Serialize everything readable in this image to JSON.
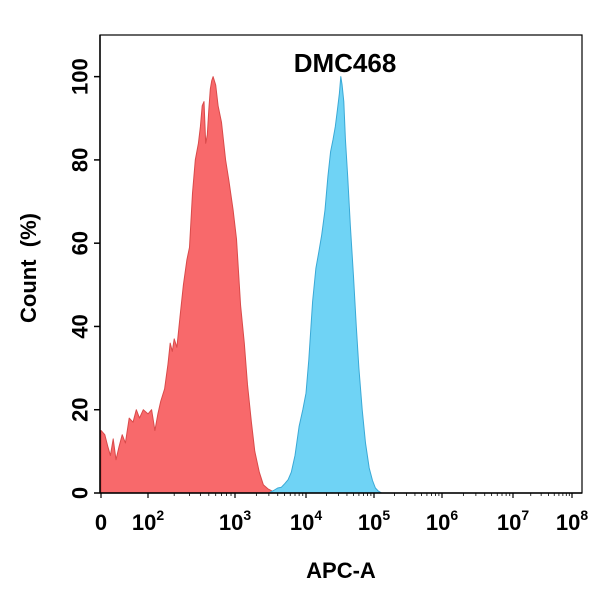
{
  "chart_data": {
    "type": "area",
    "title": "DMC468",
    "xlabel": "APC-A",
    "ylabel": "Count  (%)",
    "xscale": "biexponential",
    "ylim": [
      0,
      110
    ],
    "yticks": [
      0,
      20,
      40,
      60,
      80,
      100
    ],
    "xticks": [
      {
        "value": 0,
        "base": "0",
        "exp": ""
      },
      {
        "value": 100,
        "base": "10",
        "exp": "2"
      },
      {
        "value": 1000,
        "base": "10",
        "exp": "3"
      },
      {
        "value": 10000,
        "base": "10",
        "exp": "4"
      },
      {
        "value": 100000,
        "base": "10",
        "exp": "5"
      },
      {
        "value": 1000000,
        "base": "10",
        "exp": "6"
      },
      {
        "value": 10000000,
        "base": "10",
        "exp": "7"
      },
      {
        "value": 100000000,
        "base": "10",
        "exp": "8"
      }
    ],
    "grid": false,
    "series": [
      {
        "color": "#f8696b",
        "stroke": "#d94a4a",
        "points": [
          [
            0,
            15
          ],
          [
            8,
            14
          ],
          [
            15,
            11
          ],
          [
            20,
            9
          ],
          [
            26,
            13
          ],
          [
            32,
            8
          ],
          [
            38,
            11
          ],
          [
            45,
            14
          ],
          [
            52,
            12
          ],
          [
            60,
            18
          ],
          [
            68,
            17
          ],
          [
            75,
            20
          ],
          [
            82,
            18
          ],
          [
            90,
            20
          ],
          [
            100,
            19
          ],
          [
            110,
            20
          ],
          [
            120,
            15
          ],
          [
            130,
            19
          ],
          [
            140,
            22
          ],
          [
            155,
            25
          ],
          [
            170,
            31
          ],
          [
            180,
            36
          ],
          [
            190,
            34
          ],
          [
            200,
            37
          ],
          [
            215,
            35
          ],
          [
            235,
            43
          ],
          [
            255,
            50
          ],
          [
            280,
            56
          ],
          [
            300,
            59
          ],
          [
            325,
            72
          ],
          [
            350,
            80
          ],
          [
            380,
            84
          ],
          [
            400,
            88
          ],
          [
            420,
            93
          ],
          [
            440,
            94
          ],
          [
            460,
            84
          ],
          [
            480,
            86
          ],
          [
            500,
            92
          ],
          [
            520,
            97
          ],
          [
            540,
            99
          ],
          [
            560,
            100
          ],
          [
            600,
            98
          ],
          [
            640,
            93
          ],
          [
            700,
            89
          ],
          [
            780,
            80
          ],
          [
            850,
            75
          ],
          [
            950,
            68
          ],
          [
            1050,
            61
          ],
          [
            1200,
            45
          ],
          [
            1350,
            36
          ],
          [
            1500,
            26
          ],
          [
            1700,
            17
          ],
          [
            1900,
            10
          ],
          [
            2200,
            5
          ],
          [
            2500,
            2
          ],
          [
            2900,
            1
          ],
          [
            3500,
            0.3
          ],
          [
            4500,
            0
          ]
        ]
      },
      {
        "color": "#6fd3f5",
        "stroke": "#3aa9d6",
        "points": [
          [
            3000,
            0
          ],
          [
            3500,
            0.6
          ],
          [
            4000,
            1.2
          ],
          [
            4500,
            1.4
          ],
          [
            5000,
            2.2
          ],
          [
            5600,
            3.2
          ],
          [
            6200,
            5
          ],
          [
            7000,
            9
          ],
          [
            8000,
            16
          ],
          [
            9000,
            20
          ],
          [
            10000,
            24
          ],
          [
            11000,
            32
          ],
          [
            12500,
            46
          ],
          [
            14000,
            54
          ],
          [
            15500,
            58
          ],
          [
            17000,
            62
          ],
          [
            19000,
            68
          ],
          [
            21000,
            76
          ],
          [
            23000,
            82
          ],
          [
            25000,
            85
          ],
          [
            27000,
            88
          ],
          [
            29000,
            92
          ],
          [
            31000,
            96
          ],
          [
            32500,
            100
          ],
          [
            34000,
            98
          ],
          [
            36000,
            94
          ],
          [
            38000,
            85
          ],
          [
            41000,
            76
          ],
          [
            45000,
            64
          ],
          [
            50000,
            52
          ],
          [
            55000,
            40
          ],
          [
            60000,
            30
          ],
          [
            67000,
            20
          ],
          [
            75000,
            12
          ],
          [
            85000,
            6
          ],
          [
            95000,
            3
          ],
          [
            105000,
            1.2
          ],
          [
            115000,
            0.5
          ],
          [
            130000,
            0
          ]
        ]
      }
    ]
  }
}
